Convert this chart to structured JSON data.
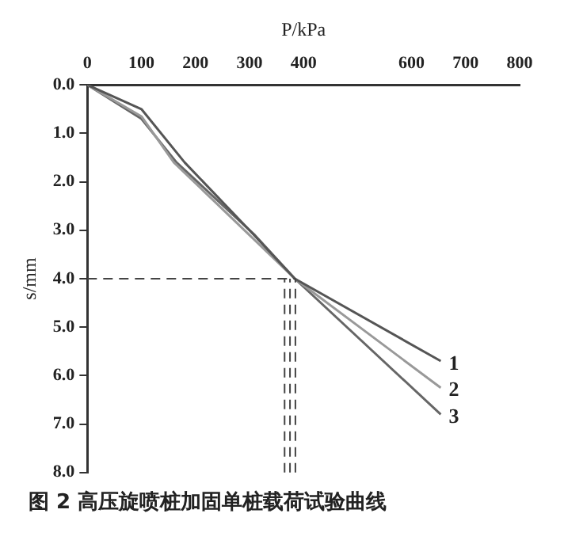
{
  "chart_data": {
    "type": "line",
    "title": "图 2  高压旋喷桩加固单桩载荷试验曲线",
    "xlabel": "P/kPa",
    "ylabel": "s/mm",
    "xlim": [
      0,
      800
    ],
    "xticks": [
      0,
      100,
      200,
      300,
      400,
      600,
      700,
      800
    ],
    "ylim": [
      8,
      0
    ],
    "yticks": [
      {
        "value": 0,
        "label": "0.0"
      },
      {
        "value": 1,
        "label": "1.0"
      },
      {
        "value": 2,
        "label": "2.0"
      },
      {
        "value": 3,
        "label": "3.0"
      },
      {
        "value": 4,
        "label": "4.0"
      },
      {
        "value": 5,
        "label": "5.0"
      },
      {
        "value": 6,
        "label": "6.0"
      },
      {
        "value": 7,
        "label": "7.0"
      },
      {
        "value": 8,
        "label": "8.0"
      }
    ],
    "series": [
      {
        "name": "1",
        "color": "#555555",
        "x": [
          0,
          100,
          180,
          300,
          384,
          654
        ],
        "values": [
          0,
          0.5,
          1.6,
          3.0,
          4.0,
          5.7
        ]
      },
      {
        "name": "2",
        "color": "#999999",
        "x": [
          0,
          100,
          160,
          300,
          384,
          654
        ],
        "values": [
          0,
          0.65,
          1.6,
          3.1,
          4.0,
          6.25
        ]
      },
      {
        "name": "3",
        "color": "#666666",
        "x": [
          0,
          100,
          165,
          310,
          384,
          654
        ],
        "values": [
          0,
          0.7,
          1.6,
          3.1,
          4.0,
          6.8
        ]
      }
    ],
    "ref_lines": [
      {
        "axis": "y",
        "value": 4.0,
        "line_style": "dashed",
        "color": "#444444"
      },
      {
        "axis": "x",
        "value": 365,
        "line_style": "dashed",
        "color": "#444444"
      },
      {
        "axis": "x",
        "value": 375,
        "line_style": "dashed",
        "color": "#444444"
      },
      {
        "axis": "x",
        "value": 385,
        "line_style": "dashed",
        "color": "#444444"
      }
    ],
    "grid": false,
    "legend": false,
    "marker": "none",
    "line_style": "solid"
  }
}
